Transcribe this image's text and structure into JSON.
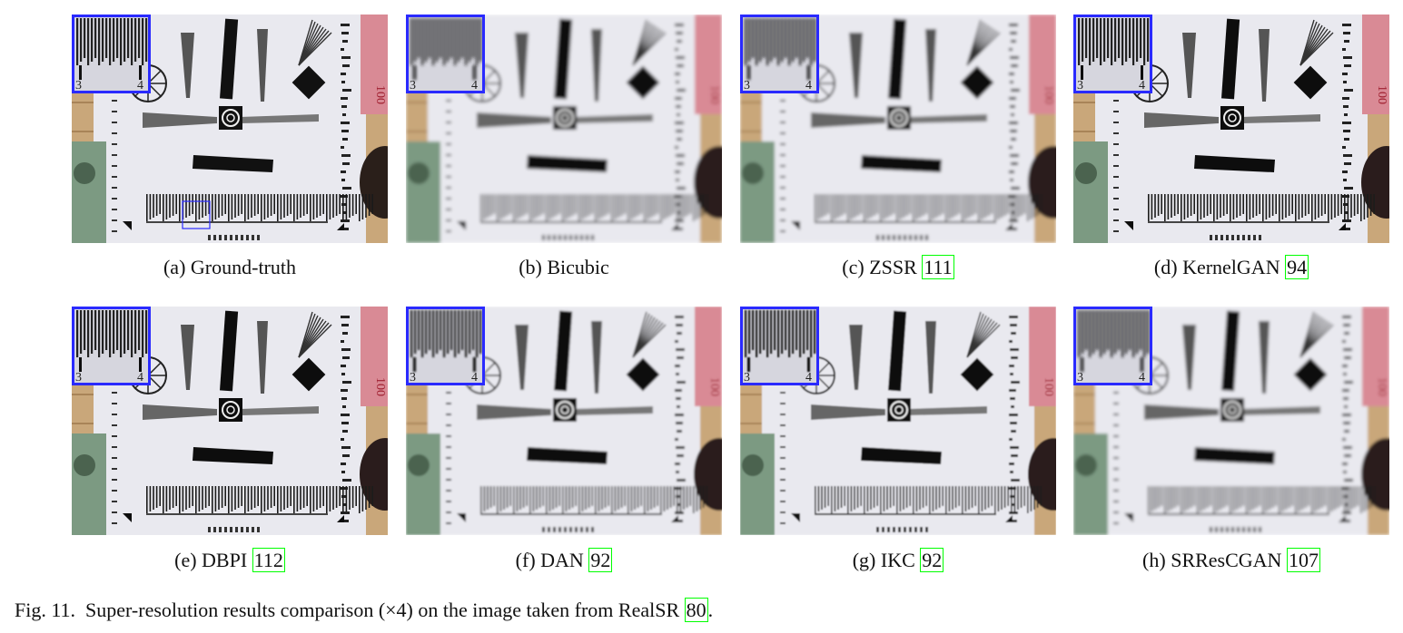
{
  "figure": {
    "label": "Fig. 11.",
    "caption_before": "Super-resolution results comparison (×4) on the image taken from RealSR ",
    "caption_ref": "80",
    "caption_after": "."
  },
  "panels": [
    {
      "tag": "(a)",
      "method": "Ground-truth",
      "ref": "",
      "sharpness": 1.0,
      "roi_box_visible": true
    },
    {
      "tag": "(b)",
      "method": "Bicubic",
      "ref": "",
      "sharpness": 0.2,
      "roi_box_visible": false
    },
    {
      "tag": "(c)",
      "method": "ZSSR",
      "ref": "111",
      "sharpness": 0.3,
      "roi_box_visible": false
    },
    {
      "tag": "(d)",
      "method": "KernelGAN",
      "ref": "94",
      "sharpness": 0.85,
      "roi_box_visible": false
    },
    {
      "tag": "(e)",
      "method": "DBPI",
      "ref": "112",
      "sharpness": 0.9,
      "roi_box_visible": false
    },
    {
      "tag": "(f)",
      "method": "DAN",
      "ref": "92",
      "sharpness": 0.55,
      "roi_box_visible": false
    },
    {
      "tag": "(g)",
      "method": "IKC",
      "ref": "92",
      "sharpness": 0.6,
      "roi_box_visible": false
    },
    {
      "tag": "(h)",
      "method": "SRResCGAN",
      "ref": "107",
      "sharpness": 0.25,
      "roi_box_visible": false
    }
  ],
  "inset_labels": [
    "3",
    "4"
  ],
  "banknote_value": "100",
  "colors": {
    "inset_border": "#2a2aff",
    "citation_box": "#00ff00",
    "chart_paper": "#e9e9ef",
    "wood": "#c9a77a"
  }
}
